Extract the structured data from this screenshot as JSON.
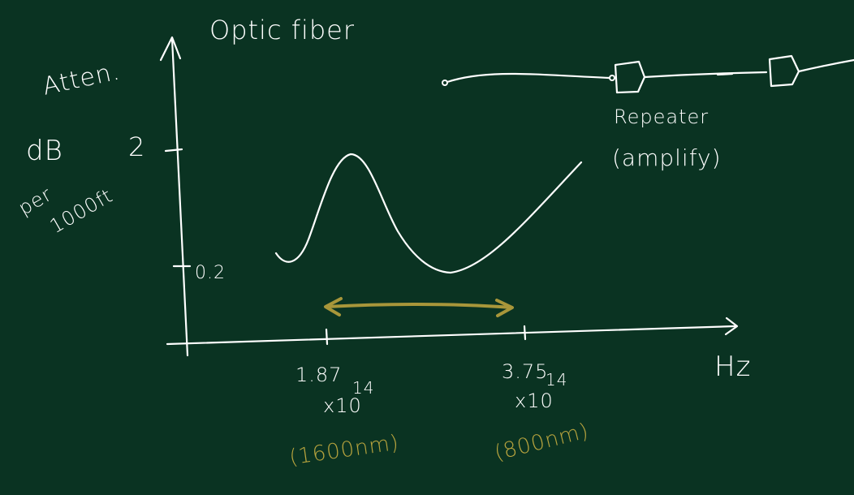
{
  "title": "Optic fiber",
  "y_axis": {
    "label_line1": "Atten.",
    "unit_line1": "dB",
    "unit_line2": "per",
    "unit_line3": "1000ft",
    "tick_high": "2",
    "tick_low": "0.2"
  },
  "x_axis": {
    "unit": "Hz",
    "tick1_value": "1.87",
    "tick1_exp_base": "x10",
    "tick1_exp": "14",
    "tick1_wavelength": "(1600nm)",
    "tick2_value": "3.75",
    "tick2_exp_base": "x10",
    "tick2_exp": "14",
    "tick2_wavelength": "(800nm)"
  },
  "repeater": {
    "label": "Repeater",
    "note": "(amplify)"
  },
  "colors": {
    "background": "#0a3322",
    "ink": "#ffffff",
    "highlight": "#a8963a"
  }
}
